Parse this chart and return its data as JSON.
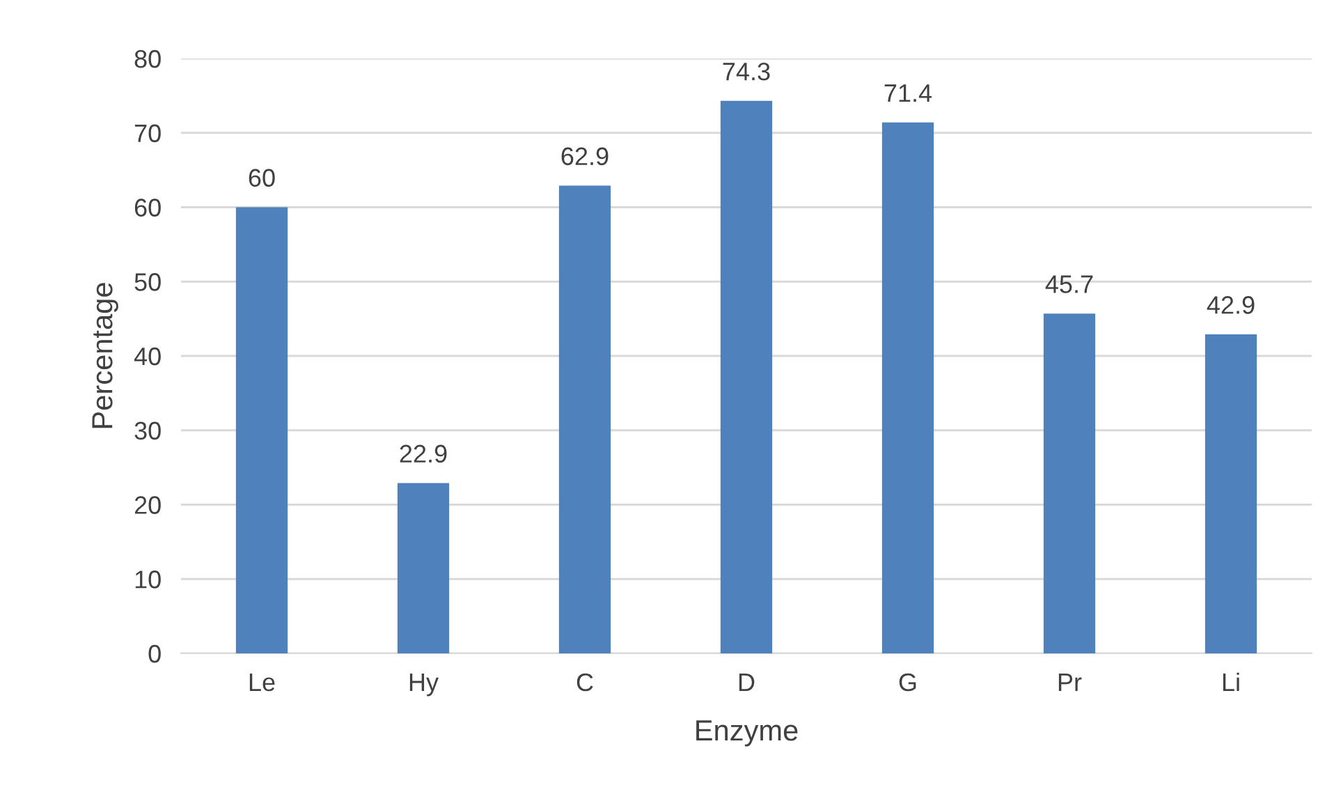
{
  "chart_data": {
    "type": "bar",
    "xlabel": "Enzyme",
    "ylabel": "Percentage",
    "categories": [
      "Le",
      "Hy",
      "C",
      "D",
      "G",
      "Pr",
      "Li"
    ],
    "values": [
      60,
      22.9,
      62.9,
      74.3,
      71.4,
      45.7,
      42.9
    ],
    "color": "#4f81bd",
    "ylim": [
      0,
      80
    ],
    "yticks": [
      0,
      10,
      20,
      30,
      40,
      50,
      60,
      70,
      80
    ],
    "grid": "y",
    "data_labels": true
  }
}
